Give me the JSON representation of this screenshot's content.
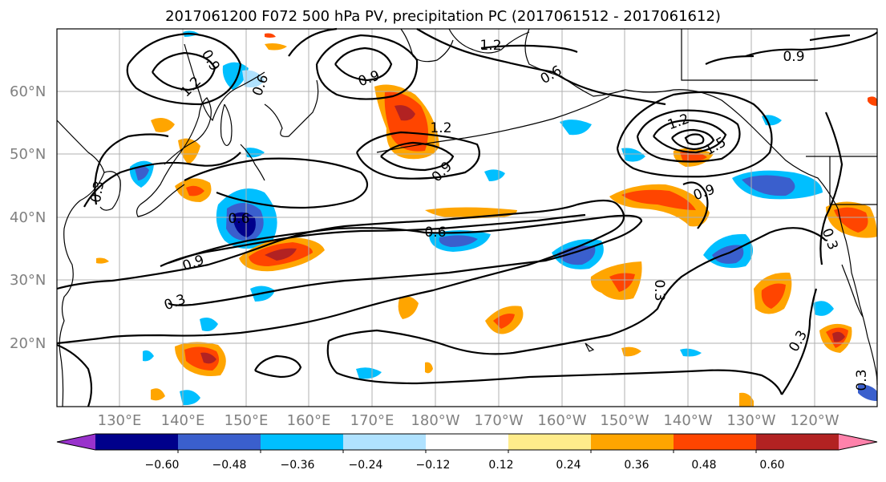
{
  "title": "2017061200 F072 500 hPa PV, precipitation PC (2017061512 - 2017061612)",
  "lat_labels": [
    "60°N",
    "50°N",
    "40°N",
    "30°N",
    "20°N"
  ],
  "lon_labels": [
    "130°E",
    "140°E",
    "150°E",
    "160°E",
    "170°E",
    "180°W",
    "170°W",
    "160°W",
    "150°W",
    "140°W",
    "130°W",
    "120°W"
  ],
  "colorbar": {
    "ticks": [
      "−0.60",
      "−0.48",
      "−0.36",
      "−0.24",
      "−0.12",
      "0.12",
      "0.24",
      "0.36",
      "0.48",
      "0.60"
    ],
    "colors": [
      "#9932cc",
      "#00008b",
      "#3a5fcd",
      "#00bfff",
      "#b0e2ff",
      "#ffffff",
      "#ffec8b",
      "#ffa500",
      "#ff4500",
      "#b22222",
      "#ff82ab"
    ]
  },
  "contour_labels": [
    "0.9",
    "1.2",
    "0.3",
    "0.6",
    "0.6",
    "0.9",
    "0.9",
    "1.2",
    "1.2",
    "0.9",
    "1.2",
    "1.5",
    "0.6",
    "0.9",
    "0.3",
    "0.3",
    "0.3",
    "0.3",
    "0.3",
    "0.9",
    "0.6"
  ]
}
